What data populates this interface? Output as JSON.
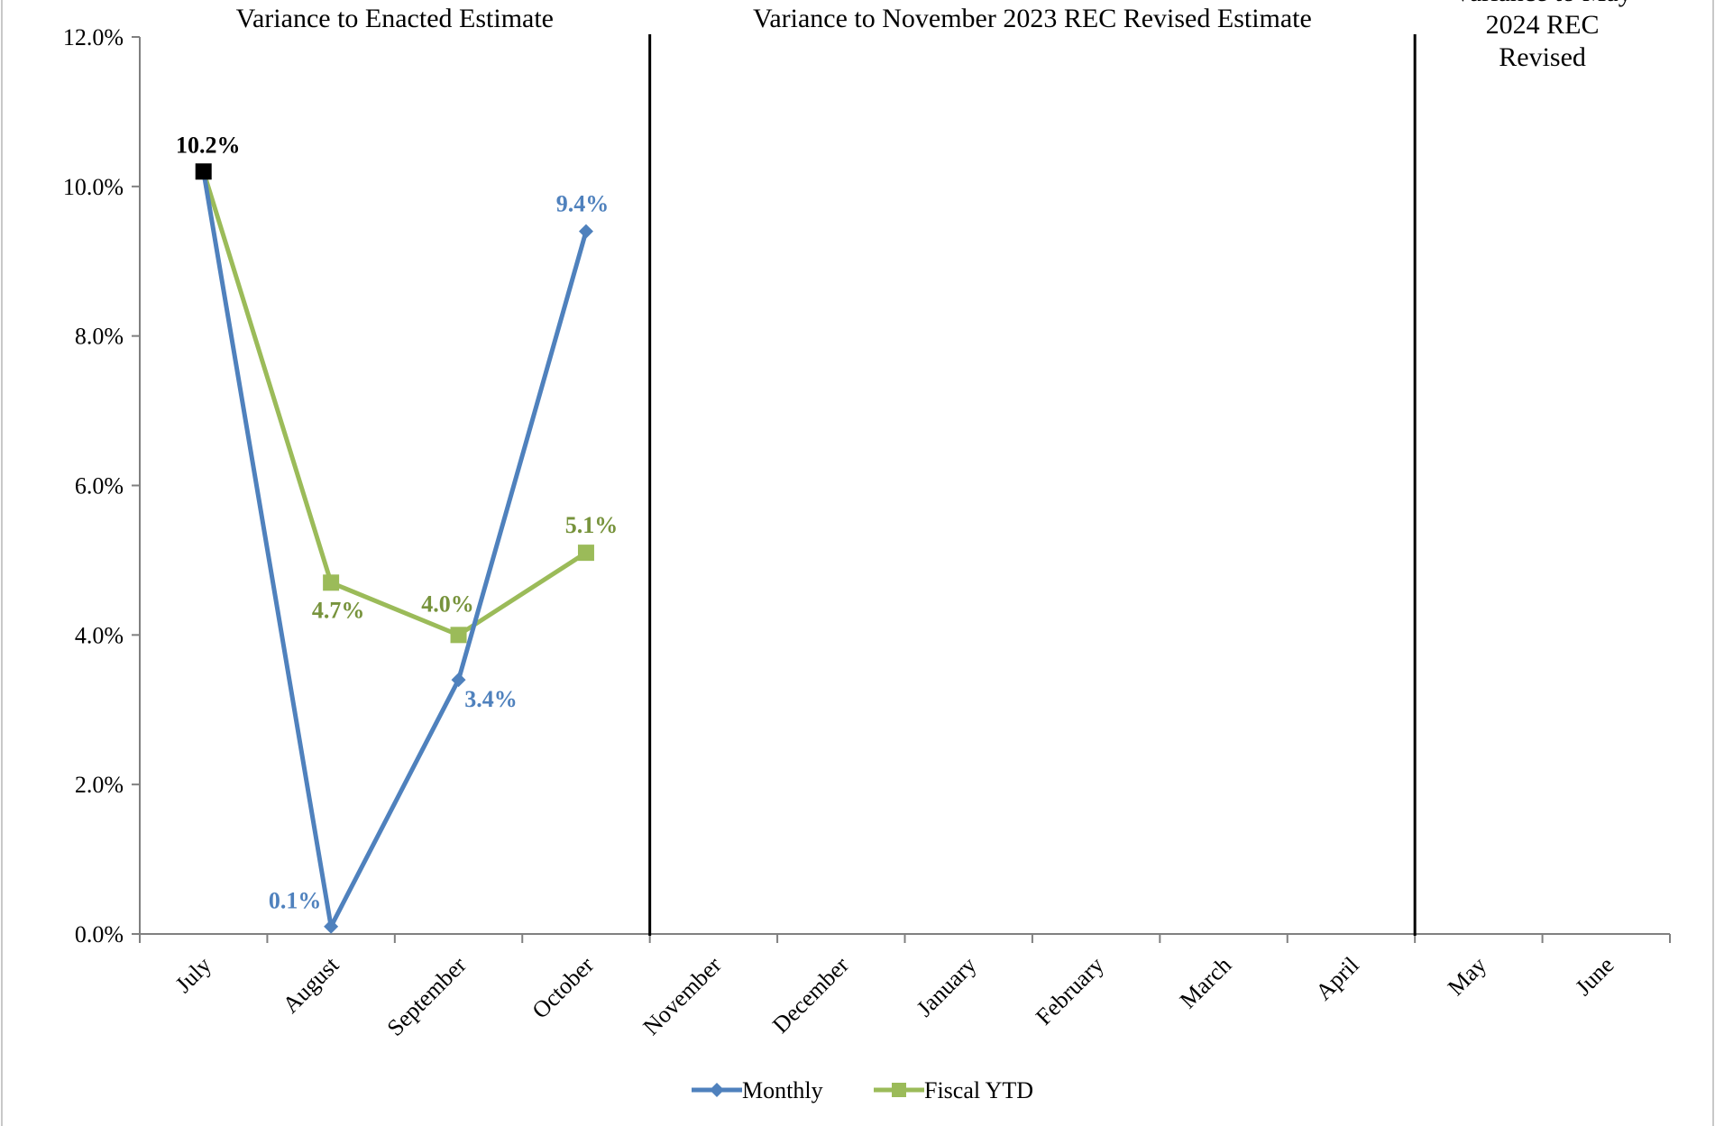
{
  "chart_data": {
    "type": "line",
    "categories": [
      "July",
      "August",
      "September",
      "October",
      "November",
      "December",
      "January",
      "February",
      "March",
      "April",
      "May",
      "June"
    ],
    "ylim": [
      0,
      12
    ],
    "yticks": [
      "0.0%",
      "2.0%",
      "4.0%",
      "6.0%",
      "8.0%",
      "10.0%",
      "12.0%"
    ],
    "grid": false,
    "legend_position": "bottom",
    "series": [
      {
        "name": "Monthly",
        "color": "#4f81bd",
        "marker": "diamond",
        "values": [
          10.2,
          0.1,
          3.4,
          9.4,
          null,
          null,
          null,
          null,
          null,
          null,
          null,
          null
        ],
        "labels": [
          "",
          "0.1%",
          "3.4%",
          "9.4%",
          "",
          "",
          "",
          "",
          "",
          "",
          "",
          ""
        ]
      },
      {
        "name": "Fiscal YTD",
        "color": "#9bbb59",
        "marker": "square",
        "values": [
          10.2,
          4.7,
          4.0,
          5.1,
          null,
          null,
          null,
          null,
          null,
          null,
          null,
          null
        ],
        "labels": [
          "",
          "4.7%",
          "4.0%",
          "5.1%",
          "",
          "",
          "",
          "",
          "",
          "",
          "",
          ""
        ]
      }
    ],
    "shared_point": {
      "category": "July",
      "value": 10.2,
      "label": "10.2%",
      "color": "#000000"
    },
    "sections": [
      {
        "title_lines": [
          "Variance to Enacted Estimate"
        ],
        "from": "July",
        "to": "October"
      },
      {
        "title_lines": [
          "Variance to November 2023 REC Revised Estimate"
        ],
        "from": "November",
        "to": "April"
      },
      {
        "title_lines": [
          "Variance to May",
          "2024 REC",
          "Revised"
        ],
        "from": "May",
        "to": "June"
      }
    ],
    "label_colors": {
      "monthly": "#4f81bd",
      "fiscal_ytd": "#77933c",
      "shared": "#000000"
    }
  }
}
